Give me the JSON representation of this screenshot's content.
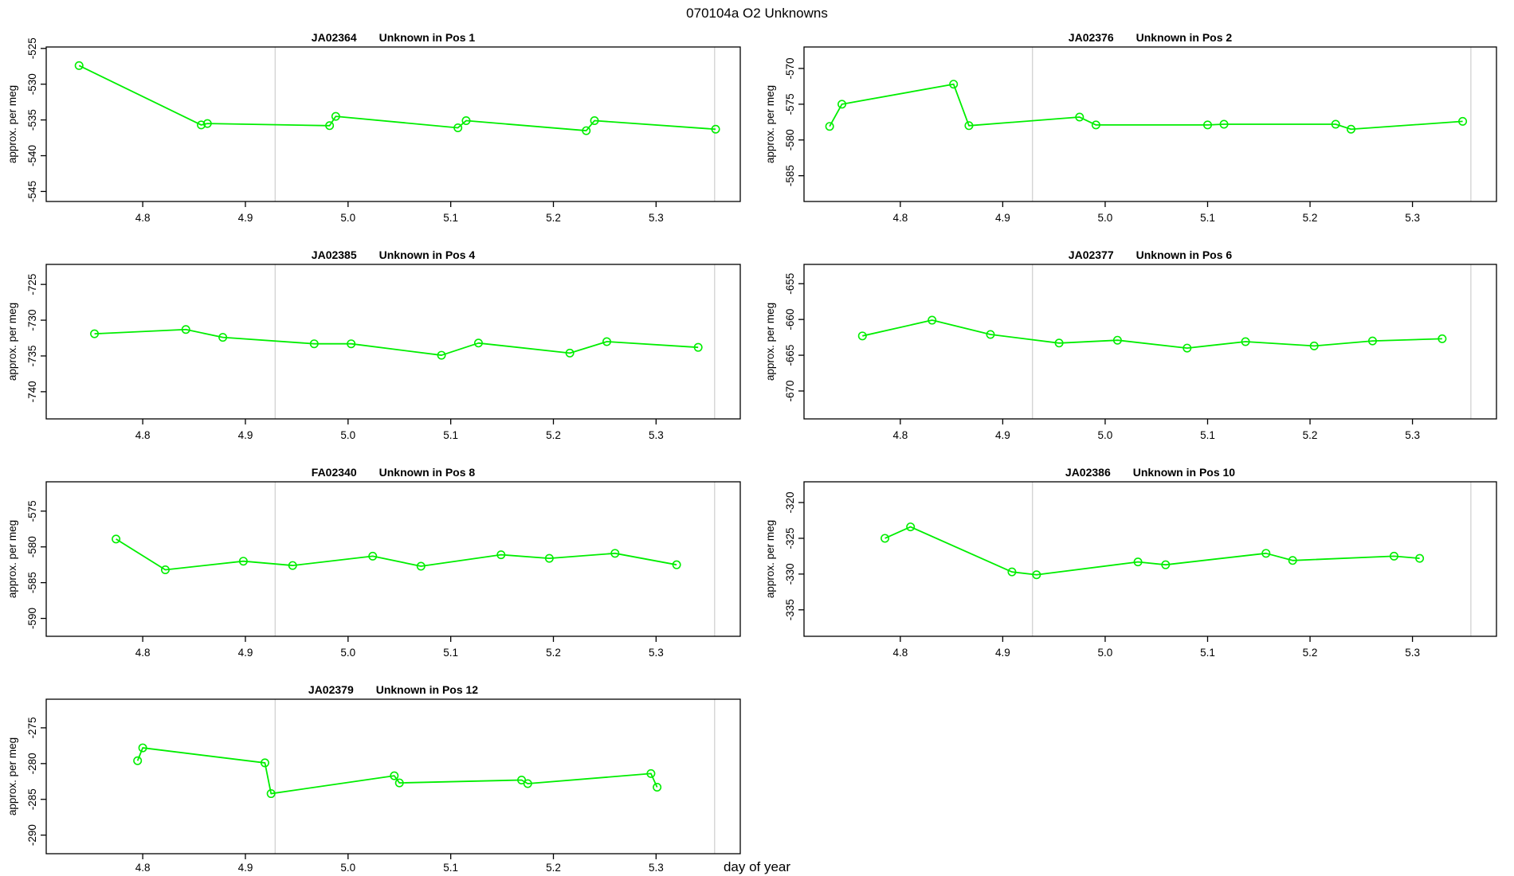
{
  "figure": {
    "title": "070104a  O2 Unknowns",
    "xlabel": "day of year",
    "ylabel": "approx. per meg",
    "series_color": "#00EE00",
    "vline_color": "#D4D4D4",
    "axis_color": "#000000",
    "background_color": "#FFFFFF"
  },
  "chart_data": [
    {
      "type": "line",
      "sample_id": "JA02364",
      "position_label": "Unknown in Pos 1",
      "x": [
        4.738,
        4.857,
        4.863,
        4.982,
        4.988,
        5.107,
        5.115,
        5.232,
        5.24,
        5.358
      ],
      "y": [
        -527.4,
        -535.7,
        -535.5,
        -535.8,
        -534.5,
        -536.1,
        -535.1,
        -536.5,
        -535.1,
        -536.3
      ],
      "xlim": [
        4.706,
        5.382
      ],
      "ylim": [
        -546.4,
        -524.8
      ],
      "xticks": [
        4.8,
        4.9,
        5.0,
        5.1,
        5.2,
        5.3
      ],
      "xtick_labels": [
        "4.8",
        "4.9",
        "5.0",
        "5.1",
        "5.2",
        "5.3"
      ],
      "yticks": [
        -545,
        -540,
        -535,
        -530,
        -525
      ],
      "ytick_labels": [
        "-545",
        "-540",
        "-535",
        "-530",
        "-525"
      ],
      "vlines": [
        4.929,
        5.357
      ]
    },
    {
      "type": "line",
      "sample_id": "JA02376",
      "position_label": "Unknown in Pos 2",
      "x": [
        4.731,
        4.743,
        4.852,
        4.867,
        4.975,
        4.991,
        5.1,
        5.116,
        5.225,
        5.24,
        5.349
      ],
      "y": [
        -578.1,
        -575.0,
        -572.2,
        -578.0,
        -576.8,
        -577.9,
        -577.9,
        -577.8,
        -577.8,
        -578.5,
        -577.4
      ],
      "xlim": [
        4.706,
        5.382
      ],
      "ylim": [
        -588.6,
        -567.0
      ],
      "xticks": [
        4.8,
        4.9,
        5.0,
        5.1,
        5.2,
        5.3
      ],
      "xtick_labels": [
        "4.8",
        "4.9",
        "5.0",
        "5.1",
        "5.2",
        "5.3"
      ],
      "yticks": [
        -585,
        -580,
        -575,
        -570
      ],
      "ytick_labels": [
        "-585",
        "-580",
        "-575",
        "-570"
      ],
      "vlines": [
        4.929,
        5.357
      ]
    },
    {
      "type": "line",
      "sample_id": "JA02385",
      "position_label": "Unknown in Pos 4",
      "x": [
        4.753,
        4.842,
        4.878,
        4.967,
        5.003,
        5.091,
        5.127,
        5.216,
        5.252,
        5.341
      ],
      "y": [
        -731.9,
        -731.3,
        -732.4,
        -733.3,
        -733.3,
        -734.9,
        -733.2,
        -734.6,
        -733.0,
        -733.8
      ],
      "xlim": [
        4.706,
        5.382
      ],
      "ylim": [
        -743.8,
        -722.2
      ],
      "xticks": [
        4.8,
        4.9,
        5.0,
        5.1,
        5.2,
        5.3
      ],
      "xtick_labels": [
        "4.8",
        "4.9",
        "5.0",
        "5.1",
        "5.2",
        "5.3"
      ],
      "yticks": [
        -740,
        -735,
        -730,
        -725
      ],
      "ytick_labels": [
        "-740",
        "-735",
        "-730",
        "-725"
      ],
      "vlines": [
        4.929,
        5.357
      ]
    },
    {
      "type": "line",
      "sample_id": "JA02377",
      "position_label": "Unknown in Pos 6",
      "x": [
        4.763,
        4.831,
        4.888,
        4.955,
        5.012,
        5.08,
        5.137,
        5.204,
        5.261,
        5.329
      ],
      "y": [
        -662.3,
        -660.1,
        -662.1,
        -663.3,
        -662.9,
        -664.0,
        -663.1,
        -663.7,
        -663.0,
        -662.7
      ],
      "xlim": [
        4.706,
        5.382
      ],
      "ylim": [
        -673.9,
        -652.3
      ],
      "xticks": [
        4.8,
        4.9,
        5.0,
        5.1,
        5.2,
        5.3
      ],
      "xtick_labels": [
        "4.8",
        "4.9",
        "5.0",
        "5.1",
        "5.2",
        "5.3"
      ],
      "yticks": [
        -670,
        -665,
        -660,
        -655
      ],
      "ytick_labels": [
        "-670",
        "-665",
        "-660",
        "-655"
      ],
      "vlines": [
        4.929,
        5.357
      ]
    },
    {
      "type": "line",
      "sample_id": "FA02340",
      "position_label": "Unknown in Pos 8",
      "x": [
        4.774,
        4.822,
        4.898,
        4.946,
        5.024,
        5.071,
        5.149,
        5.196,
        5.26,
        5.32
      ],
      "y": [
        -578.9,
        -583.2,
        -582.0,
        -582.6,
        -581.3,
        -582.7,
        -581.1,
        -581.6,
        -580.9,
        -582.5
      ],
      "xlim": [
        4.706,
        5.382
      ],
      "ylim": [
        -592.5,
        -570.9
      ],
      "xticks": [
        4.8,
        4.9,
        5.0,
        5.1,
        5.2,
        5.3
      ],
      "xtick_labels": [
        "4.8",
        "4.9",
        "5.0",
        "5.1",
        "5.2",
        "5.3"
      ],
      "yticks": [
        -590,
        -585,
        -580,
        -575
      ],
      "ytick_labels": [
        "-590",
        "-585",
        "-580",
        "-575"
      ],
      "vlines": [
        4.929,
        5.357
      ]
    },
    {
      "type": "line",
      "sample_id": "JA02386",
      "position_label": "Unknown in Pos 10",
      "x": [
        4.785,
        4.81,
        4.909,
        4.933,
        5.032,
        5.059,
        5.157,
        5.183,
        5.282,
        5.307
      ],
      "y": [
        -325.0,
        -323.4,
        -329.7,
        -330.1,
        -328.3,
        -328.7,
        -327.1,
        -328.1,
        -327.5,
        -327.8
      ],
      "xlim": [
        4.706,
        5.382
      ],
      "ylim": [
        -338.7,
        -317.1
      ],
      "xticks": [
        4.8,
        4.9,
        5.0,
        5.1,
        5.2,
        5.3
      ],
      "xtick_labels": [
        "4.8",
        "4.9",
        "5.0",
        "5.1",
        "5.2",
        "5.3"
      ],
      "yticks": [
        -335,
        -330,
        -325,
        -320
      ],
      "ytick_labels": [
        "-335",
        "-330",
        "-325",
        "-320"
      ],
      "vlines": [
        4.929,
        5.357
      ]
    },
    {
      "type": "line",
      "sample_id": "JA02379",
      "position_label": "Unknown in Pos 12",
      "x": [
        4.795,
        4.8,
        4.919,
        4.925,
        5.045,
        5.05,
        5.169,
        5.175,
        5.295,
        5.301
      ],
      "y": [
        -279.6,
        -277.8,
        -279.9,
        -284.2,
        -281.7,
        -282.7,
        -282.3,
        -282.8,
        -281.4,
        -283.3
      ],
      "xlim": [
        4.706,
        5.382
      ],
      "ylim": [
        -292.6,
        -271.0
      ],
      "xticks": [
        4.8,
        4.9,
        5.0,
        5.1,
        5.2,
        5.3
      ],
      "xtick_labels": [
        "4.8",
        "4.9",
        "5.0",
        "5.1",
        "5.2",
        "5.3"
      ],
      "yticks": [
        -290,
        -285,
        -280,
        -275
      ],
      "ytick_labels": [
        "-290",
        "-285",
        "-280",
        "-275"
      ],
      "vlines": [
        4.929,
        5.357
      ]
    }
  ]
}
